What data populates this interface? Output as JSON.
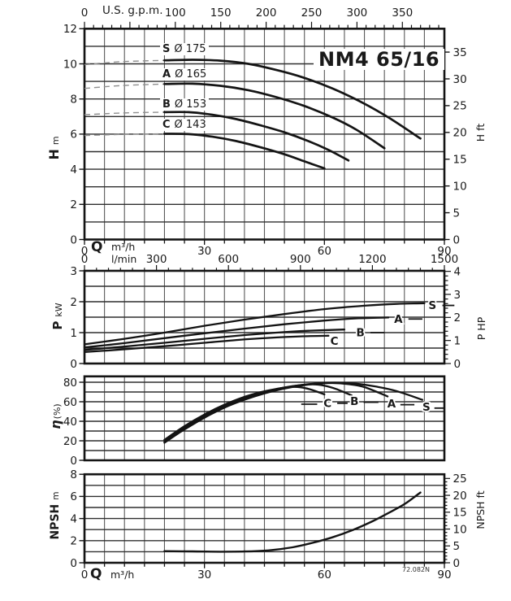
{
  "title": "NM4 65/16",
  "watermark": "72.082N",
  "colors": {
    "curve": "#141414",
    "grid_h": "#2f2f2f",
    "grid_v": "#5a5a5a",
    "border": "#141414",
    "dashed": "#8f8f8f",
    "text": "#1a1a1a",
    "background": "#ffffff"
  },
  "chart_data": [
    {
      "id": "head",
      "type": "line",
      "title": "NM4 65/16",
      "x_axis": {
        "label": "Q",
        "units": [
          "m³/h",
          "l/min"
        ],
        "range_m3h": [
          0,
          90
        ],
        "ticks_m3h": [
          0,
          30,
          60,
          90
        ],
        "grid_step_m3h": 5,
        "lmin_ticks": [
          0,
          300,
          600,
          900,
          1200,
          1500
        ],
        "lmin_minor_step": 50
      },
      "top_axis": {
        "label": "U.S. g.p.m.",
        "range_gpm": [
          0,
          396
        ],
        "ticks": [
          0,
          100,
          150,
          200,
          250,
          300,
          350
        ],
        "minor_step": 10
      },
      "y_axis": {
        "label": "H",
        "unit": "m",
        "range": [
          0,
          12
        ],
        "ticks": [
          0,
          2,
          4,
          6,
          8,
          10,
          12
        ],
        "grid_step": 1
      },
      "y2_axis": {
        "label": "H",
        "unit": "ft",
        "ticks": [
          0,
          5,
          10,
          15,
          20,
          25,
          30,
          35
        ]
      },
      "curve_labels": [
        {
          "letter": "S",
          "size": "Ø 175"
        },
        {
          "letter": "A",
          "size": "Ø 165"
        },
        {
          "letter": "B",
          "size": "Ø 153"
        },
        {
          "letter": "C",
          "size": "Ø 143"
        }
      ],
      "series": [
        {
          "name": "S",
          "impeller": "Ø 175",
          "dashed_extension": [
            [
              0,
              9.95
            ],
            [
              9,
              10.12
            ],
            [
              20,
              10.2
            ]
          ],
          "points": [
            [
              20,
              10.2
            ],
            [
              27,
              10.23
            ],
            [
              34,
              10.18
            ],
            [
              41,
              10.0
            ],
            [
              48,
              9.65
            ],
            [
              55,
              9.2
            ],
            [
              62,
              8.6
            ],
            [
              69,
              7.85
            ],
            [
              76,
              6.95
            ],
            [
              84,
              5.75
            ]
          ]
        },
        {
          "name": "A",
          "impeller": "Ø 165",
          "dashed_extension": [
            [
              0,
              8.6
            ],
            [
              9,
              8.76
            ],
            [
              20,
              8.85
            ]
          ],
          "points": [
            [
              20,
              8.85
            ],
            [
              27,
              8.87
            ],
            [
              34,
              8.75
            ],
            [
              41,
              8.5
            ],
            [
              48,
              8.1
            ],
            [
              55,
              7.6
            ],
            [
              62,
              6.95
            ],
            [
              68,
              6.25
            ],
            [
              75,
              5.2
            ]
          ]
        },
        {
          "name": "B",
          "impeller": "Ø 153",
          "dashed_extension": [
            [
              0,
              7.1
            ],
            [
              9,
              7.2
            ],
            [
              20,
              7.25
            ]
          ],
          "points": [
            [
              20,
              7.25
            ],
            [
              26,
              7.25
            ],
            [
              32,
              7.1
            ],
            [
              38,
              6.85
            ],
            [
              44,
              6.5
            ],
            [
              50,
              6.1
            ],
            [
              56,
              5.6
            ],
            [
              61,
              5.1
            ],
            [
              66,
              4.5
            ]
          ]
        },
        {
          "name": "C",
          "impeller": "Ø 143",
          "dashed_extension": [
            [
              0,
              5.92
            ],
            [
              9,
              5.98
            ],
            [
              20,
              6.02
            ]
          ],
          "points": [
            [
              20,
              6.02
            ],
            [
              26,
              6.0
            ],
            [
              32,
              5.85
            ],
            [
              38,
              5.6
            ],
            [
              44,
              5.25
            ],
            [
              50,
              4.85
            ],
            [
              55,
              4.45
            ],
            [
              60,
              4.05
            ]
          ]
        }
      ]
    },
    {
      "id": "power",
      "type": "line",
      "y_axis": {
        "label": "P",
        "unit": "kW",
        "range": [
          0,
          3
        ],
        "ticks": [
          0,
          1,
          2,
          3
        ],
        "grid_step": 0.5
      },
      "y2_axis": {
        "label": "P",
        "unit": "HP",
        "ticks": [
          0,
          1,
          2,
          3,
          4
        ],
        "minor_step": 0.2
      },
      "series": [
        {
          "name": "S",
          "points": [
            [
              0,
              0.62
            ],
            [
              10,
              0.8
            ],
            [
              20,
              1.0
            ],
            [
              30,
              1.22
            ],
            [
              40,
              1.42
            ],
            [
              50,
              1.6
            ],
            [
              60,
              1.76
            ],
            [
              70,
              1.87
            ],
            [
              78,
              1.93
            ],
            [
              85,
              1.95
            ]
          ],
          "label": {
            "text": "S",
            "at": [
              87,
              1.88
            ]
          },
          "dashes": [
            [
              [
                89.5,
                1.88
              ],
              [
                92.5,
                1.88
              ]
            ]
          ]
        },
        {
          "name": "A",
          "points": [
            [
              0,
              0.52
            ],
            [
              10,
              0.66
            ],
            [
              20,
              0.82
            ],
            [
              30,
              0.98
            ],
            [
              40,
              1.13
            ],
            [
              50,
              1.27
            ],
            [
              60,
              1.39
            ],
            [
              68,
              1.46
            ],
            [
              76,
              1.49
            ]
          ],
          "label": {
            "text": "A",
            "at": [
              78.5,
              1.44
            ]
          },
          "dashes": [
            [
              [
                81,
                1.44
              ],
              [
                84.5,
                1.44
              ]
            ]
          ]
        },
        {
          "name": "B",
          "points": [
            [
              0,
              0.44
            ],
            [
              10,
              0.55
            ],
            [
              20,
              0.67
            ],
            [
              30,
              0.8
            ],
            [
              40,
              0.92
            ],
            [
              48,
              1.0
            ],
            [
              56,
              1.06
            ],
            [
              65,
              1.1
            ]
          ],
          "label": {
            "text": "B",
            "at": [
              69,
              1.0
            ]
          },
          "dashes": [
            [
              [
                71.5,
                1.0
              ],
              [
                75,
                1.0
              ]
            ]
          ]
        },
        {
          "name": "C",
          "points": [
            [
              0,
              0.37
            ],
            [
              10,
              0.46
            ],
            [
              20,
              0.56
            ],
            [
              30,
              0.67
            ],
            [
              38,
              0.76
            ],
            [
              46,
              0.83
            ],
            [
              54,
              0.88
            ],
            [
              61,
              0.9
            ]
          ],
          "label": {
            "text": "C",
            "at": [
              62.5,
              0.73
            ]
          },
          "dashes": []
        }
      ]
    },
    {
      "id": "efficiency",
      "type": "line",
      "y_axis": {
        "label": "η",
        "unit": "(%)",
        "range": [
          0,
          86
        ],
        "ticks": [
          0,
          20,
          40,
          60,
          80
        ],
        "grid_step": 10
      },
      "series": [
        {
          "name": "S",
          "points": [
            [
              20,
              18
            ],
            [
              24,
              29
            ],
            [
              28,
              39
            ],
            [
              32,
              48
            ],
            [
              36,
              56
            ],
            [
              40,
              62.5
            ],
            [
              44,
              68
            ],
            [
              48,
              72.5
            ],
            [
              52,
              75.8
            ],
            [
              56,
              78
            ],
            [
              60,
              79.3
            ],
            [
              64,
              79.5
            ],
            [
              68,
              78.5
            ],
            [
              73,
              75.5
            ],
            [
              78,
              71
            ],
            [
              84.5,
              62
            ]
          ],
          "label": {
            "text": "S",
            "at": [
              85.5,
              54.5
            ]
          },
          "dashes": [
            [
              [
                87.5,
                53.5
              ],
              [
                90,
                53.5
              ]
            ]
          ]
        },
        {
          "name": "A",
          "points": [
            [
              20,
              19
            ],
            [
              25,
              32
            ],
            [
              30,
              44
            ],
            [
              35,
              54
            ],
            [
              40,
              62
            ],
            [
              45,
              68.5
            ],
            [
              50,
              73.5
            ],
            [
              54,
              76.5
            ],
            [
              58,
              78.5
            ],
            [
              62,
              79.2
            ],
            [
              66,
              78
            ],
            [
              70,
              75
            ],
            [
              75.8,
              65.5
            ]
          ],
          "label": {
            "text": "A",
            "at": [
              76.8,
              58
            ]
          },
          "dashes": [
            [
              [
                79,
                57
              ],
              [
                82.5,
                57
              ]
            ]
          ]
        },
        {
          "name": "B",
          "points": [
            [
              20,
              20
            ],
            [
              25,
              33.5
            ],
            [
              30,
              45.5
            ],
            [
              35,
              55.5
            ],
            [
              40,
              63.5
            ],
            [
              45,
              70
            ],
            [
              49,
              73.8
            ],
            [
              53,
              76.5
            ],
            [
              57,
              77.8
            ],
            [
              60,
              76.5
            ],
            [
              63,
              73
            ],
            [
              66.8,
              66.5
            ]
          ],
          "label": {
            "text": "B",
            "at": [
              67.5,
              60.5
            ]
          },
          "dashes": [
            [
              [
                69.8,
                59.5
              ],
              [
                73.5,
                59.5
              ]
            ]
          ]
        },
        {
          "name": "C",
          "points": [
            [
              20,
              21
            ],
            [
              25,
              35
            ],
            [
              30,
              47
            ],
            [
              35,
              57
            ],
            [
              40,
              65
            ],
            [
              44,
              69.8
            ],
            [
              48,
              73.2
            ],
            [
              51,
              75
            ],
            [
              54,
              74.8
            ],
            [
              57,
              72
            ],
            [
              60,
              67.5
            ]
          ],
          "label": {
            "text": "C",
            "at": [
              60.8,
              58.5
            ]
          },
          "dashes": [
            [
              [
                54.2,
                57.5
              ],
              [
                58.2,
                57.5
              ]
            ],
            [
              [
                63.2,
                58.5
              ],
              [
                65.8,
                58.5
              ]
            ]
          ]
        }
      ]
    },
    {
      "id": "npsh",
      "type": "line",
      "x_axis": {
        "label": "Q",
        "unit": "m³/h",
        "ticks_m3h": [
          0,
          30,
          60,
          90
        ],
        "grid_step_m3h": 5
      },
      "y_axis": {
        "label": "NPSH",
        "unit": "m",
        "range": [
          0,
          8
        ],
        "ticks": [
          0,
          2,
          4,
          6,
          8
        ],
        "grid_step": 1
      },
      "y2_axis": {
        "label": "NPSH",
        "unit": "ft",
        "ticks": [
          0,
          5,
          10,
          15,
          20,
          25
        ],
        "minor_step": 1
      },
      "series": [
        {
          "name": "NPSH",
          "points": [
            [
              20,
              1.05
            ],
            [
              27,
              1.03
            ],
            [
              34,
              1.0
            ],
            [
              40,
              1.02
            ],
            [
              46,
              1.12
            ],
            [
              52,
              1.4
            ],
            [
              57,
              1.8
            ],
            [
              62,
              2.3
            ],
            [
              67,
              2.95
            ],
            [
              72,
              3.75
            ],
            [
              76,
              4.5
            ],
            [
              80,
              5.3
            ],
            [
              84,
              6.35
            ]
          ]
        }
      ]
    }
  ]
}
